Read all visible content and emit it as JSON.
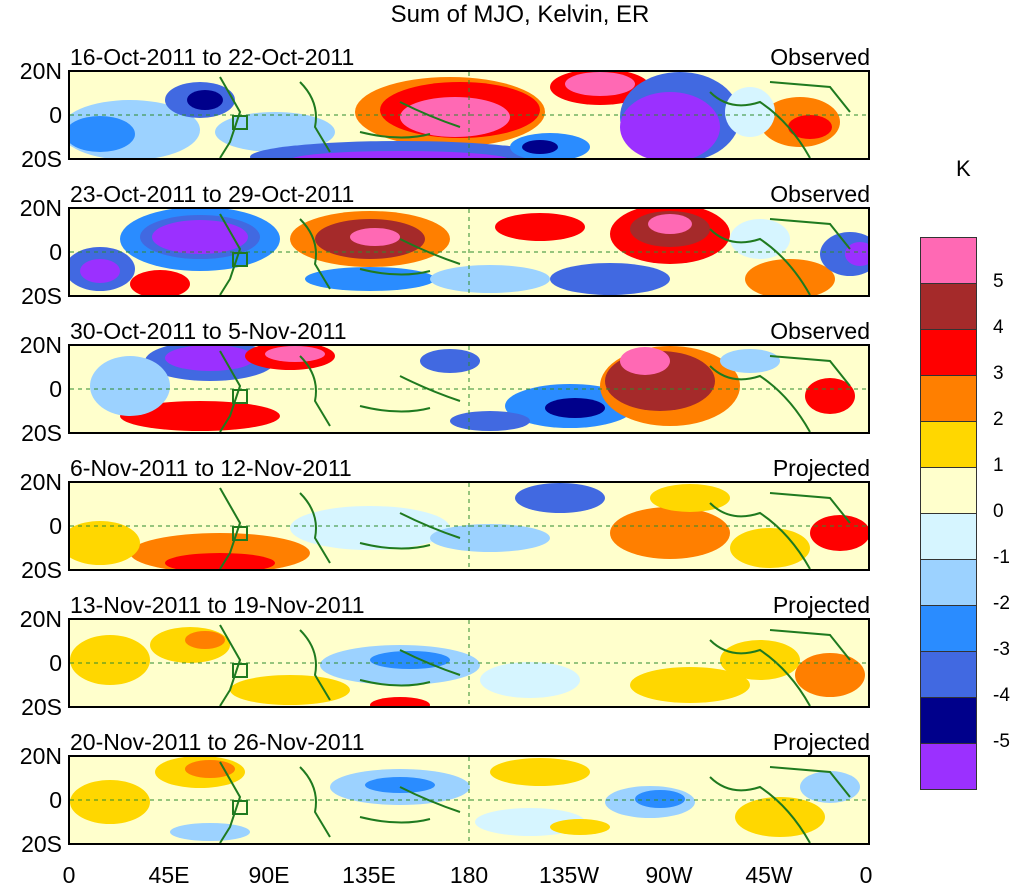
{
  "figure_title": "Sum of MJO, Kelvin, ER",
  "panels": [
    {
      "title": "16-Oct-2011 to 22-Oct-2011",
      "status": "Observed"
    },
    {
      "title": "23-Oct-2011 to 29-Oct-2011",
      "status": "Observed"
    },
    {
      "title": "30-Oct-2011 to 5-Nov-2011",
      "status": "Observed"
    },
    {
      "title": "6-Nov-2011 to 12-Nov-2011",
      "status": "Projected"
    },
    {
      "title": "13-Nov-2011 to 19-Nov-2011",
      "status": "Projected"
    },
    {
      "title": "20-Nov-2011 to 26-Nov-2011",
      "status": "Projected"
    }
  ],
  "lat_labels": [
    "20N",
    "0",
    "20S"
  ],
  "lon_labels": [
    "0",
    "45E",
    "90E",
    "135E",
    "180",
    "135W",
    "90W",
    "45W",
    "0"
  ],
  "legend": {
    "unit": "K",
    "labels": [
      "5",
      "4",
      "3",
      "2",
      "1",
      "0",
      "-1",
      "-2",
      "-3",
      "-4",
      "-5"
    ],
    "colors": [
      "#ff69b4",
      "#a52a2a",
      "#ff0000",
      "#ff7f00",
      "#ffd700",
      "#ffffcc",
      "#d6f5ff",
      "#9cd2ff",
      "#2a8cff",
      "#4169e1",
      "#00008b",
      "#9b30ff"
    ]
  },
  "colors": {
    "coast": "#1f7a1f",
    "guide": "#2e8b2e"
  }
}
